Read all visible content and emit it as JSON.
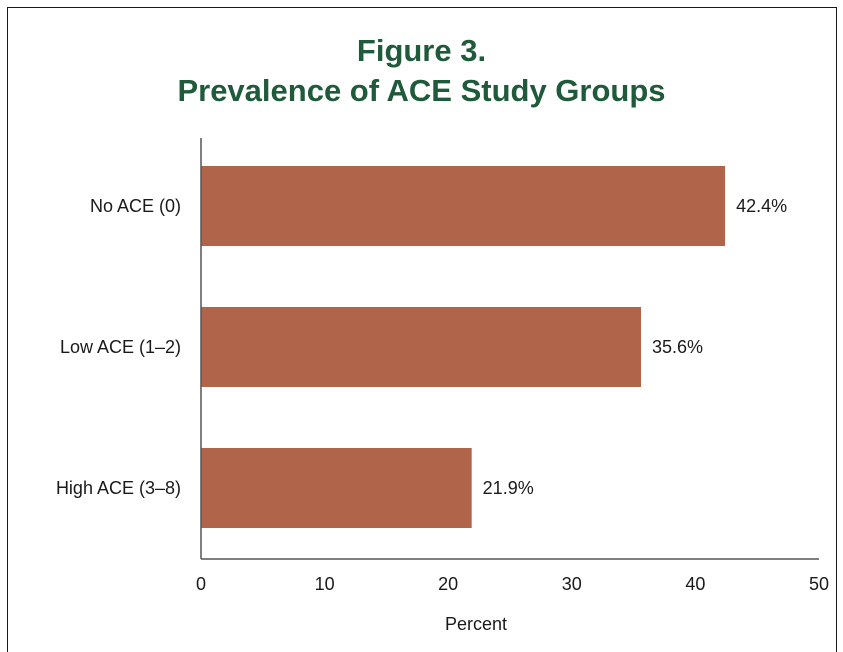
{
  "title_line1": "Figure 3.",
  "title_line2": "Prevalence of ACE Study Groups",
  "bar_color": "#b0654a",
  "chart_data": {
    "type": "bar",
    "orientation": "horizontal",
    "title": "Figure 3. Prevalence of ACE Study Groups",
    "categories": [
      "No ACE (0)",
      "Low ACE (1–2)",
      "High ACE (3–8)"
    ],
    "values": [
      42.4,
      35.6,
      21.9
    ],
    "value_labels": [
      "42.4%",
      "35.6%",
      "21.9%"
    ],
    "xlabel": "Percent",
    "ylabel": "",
    "xlim": [
      0,
      50
    ],
    "xticks": [
      "0",
      "10",
      "20",
      "30",
      "40",
      "50"
    ],
    "grid": false,
    "legend": "none"
  }
}
